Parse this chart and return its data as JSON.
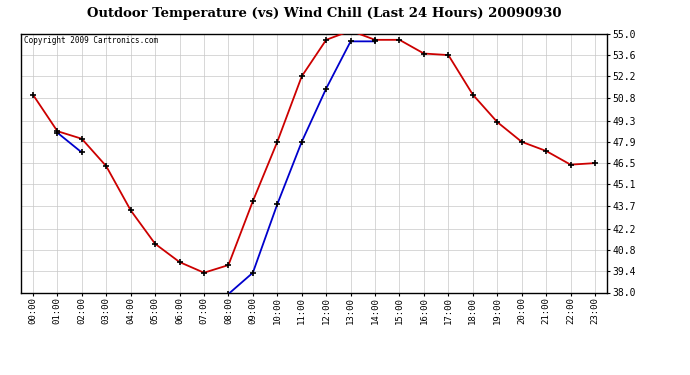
{
  "title": "Outdoor Temperature (vs) Wind Chill (Last 24 Hours) 20090930",
  "copyright": "Copyright 2009 Cartronics.com",
  "background_color": "#ffffff",
  "plot_bg_color": "#ffffff",
  "grid_color": "#c8c8c8",
  "temp_color": "#cc0000",
  "windchill_color": "#0000cc",
  "temp_x": [
    0,
    1,
    2,
    3,
    4,
    5,
    6,
    7,
    8,
    9,
    10,
    11,
    12,
    13,
    14,
    15,
    16,
    17,
    18,
    19,
    20,
    21,
    22,
    23
  ],
  "temp_y": [
    51.0,
    48.6,
    48.1,
    46.3,
    43.4,
    41.2,
    40.0,
    39.3,
    39.8,
    44.0,
    47.9,
    52.2,
    54.6,
    55.2,
    54.6,
    54.6,
    53.7,
    53.6,
    51.0,
    49.2,
    47.9,
    47.3,
    46.4,
    46.5
  ],
  "wc_segments": [
    {
      "x": [
        1,
        2
      ],
      "y": [
        48.5,
        47.2
      ]
    },
    {
      "x": [
        8,
        9,
        10,
        11,
        12,
        13,
        14
      ],
      "y": [
        37.9,
        39.3,
        43.8,
        47.9,
        51.4,
        54.5,
        54.5
      ]
    }
  ],
  "ylim": [
    38.0,
    55.0
  ],
  "yticks": [
    38.0,
    39.4,
    40.8,
    42.2,
    43.7,
    45.1,
    46.5,
    47.9,
    49.3,
    50.8,
    52.2,
    53.6,
    55.0
  ],
  "xtick_labels": [
    "00:00",
    "01:00",
    "02:00",
    "03:00",
    "04:00",
    "05:00",
    "06:00",
    "07:00",
    "08:00",
    "09:00",
    "10:00",
    "11:00",
    "12:00",
    "13:00",
    "14:00",
    "15:00",
    "16:00",
    "17:00",
    "18:00",
    "19:00",
    "20:00",
    "21:00",
    "22:00",
    "23:00"
  ]
}
